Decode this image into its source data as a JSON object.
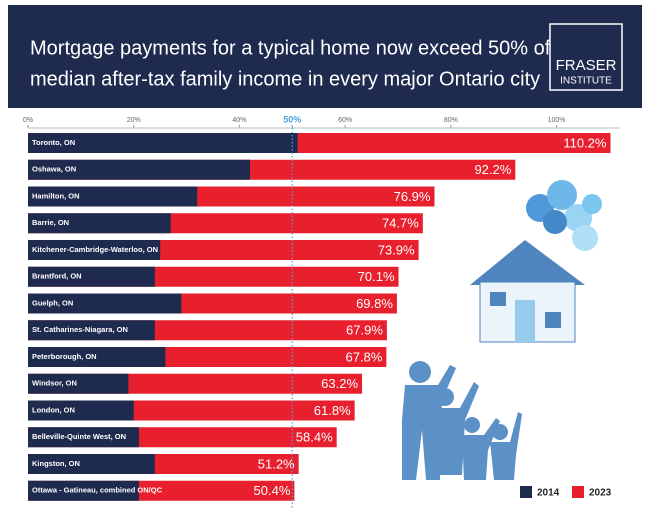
{
  "chart_data": {
    "type": "bar",
    "title": [
      "Mortgage payments for a typical home now exceed 50% of",
      "median after-tax family income in every major Ontario city"
    ],
    "brand": [
      "FRASER",
      "INSTITUTE"
    ],
    "categories": [
      "Toronto, ON",
      "Oshawa, ON",
      "Hamilton, ON",
      "Barrie, ON",
      "Kitchener-Cambridge-Waterloo, ON",
      "Brantford, ON",
      "Guelph, ON",
      "St. Catharines-Niagara, ON",
      "Peterborough, ON",
      "Windsor, ON",
      "London, ON",
      "Belleville-Quinte West, ON",
      "Kingston, ON",
      "Ottawa - Gatineau, combined ON/QC"
    ],
    "series": [
      {
        "name": "2014",
        "color": "#1f2a4f",
        "values": [
          51,
          42,
          32,
          27,
          25,
          24,
          29,
          24,
          26,
          19,
          20,
          21,
          24,
          21
        ]
      },
      {
        "name": "2023",
        "color": "#e8202e",
        "values": [
          110.2,
          92.2,
          76.9,
          74.7,
          73.9,
          70.1,
          69.8,
          67.9,
          67.8,
          63.2,
          61.8,
          58.4,
          51.2,
          50.4
        ],
        "value_labels": [
          "110.2%",
          "92.2%",
          "76.9%",
          "74.7%",
          "73.9%",
          "70.1%",
          "69.8%",
          "67.9%",
          "67.8%",
          "63.2%",
          "61.8%",
          "58.4%",
          "51.2%",
          "50.4%"
        ]
      }
    ],
    "xlim": [
      0,
      112
    ],
    "xticks": [
      {
        "value": 0,
        "label": "0%"
      },
      {
        "value": 20,
        "label": "20%"
      },
      {
        "value": 40,
        "label": "40%"
      },
      {
        "value": 50,
        "label": "50%"
      },
      {
        "value": 60,
        "label": "60%"
      },
      {
        "value": 80,
        "label": "80%"
      },
      {
        "value": 100,
        "label": "100%"
      }
    ],
    "reference_line": {
      "value": 50,
      "color": "#4aa3df"
    },
    "legend": "bottom-right"
  }
}
